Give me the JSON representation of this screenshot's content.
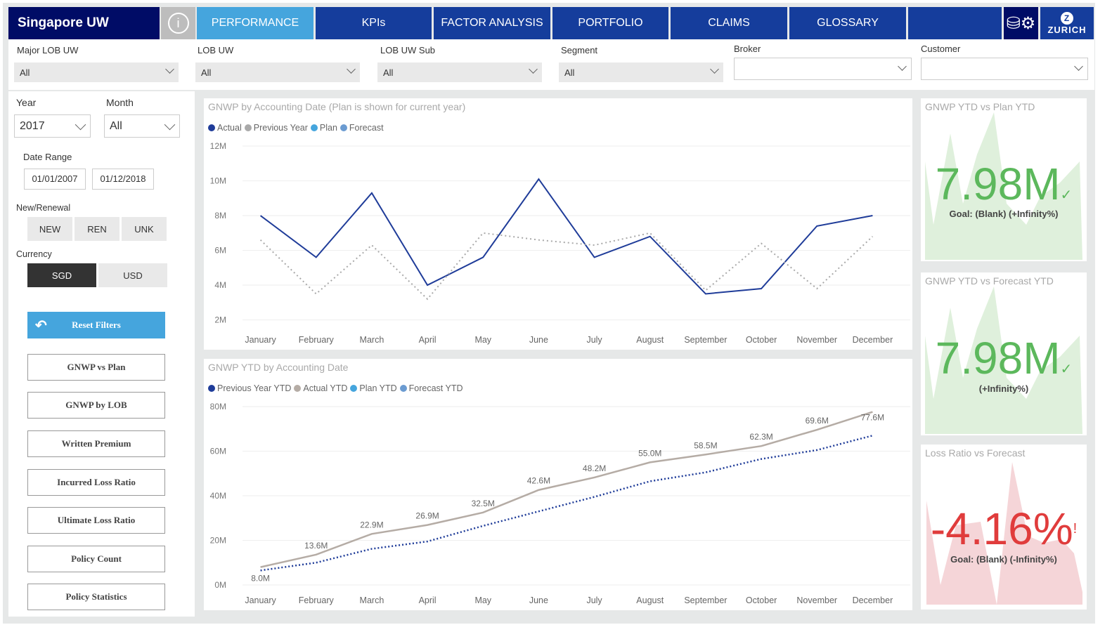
{
  "header": {
    "title": "Singapore UW",
    "tabs": [
      "PERFORMANCE",
      "KPIs",
      "FACTOR ANALYSIS",
      "PORTFOLIO",
      "CLAIMS",
      "GLOSSARY"
    ],
    "active_tab": "PERFORMANCE",
    "logo": "ZURICH"
  },
  "filters": {
    "major_lob": {
      "label": "Major LOB UW",
      "value": "All"
    },
    "lob": {
      "label": "LOB UW",
      "value": "All"
    },
    "lob_sub": {
      "label": "LOB UW Sub",
      "value": "All"
    },
    "segment": {
      "label": "Segment",
      "value": "All"
    },
    "broker": {
      "label": "Broker",
      "value": ""
    },
    "customer": {
      "label": "Customer",
      "value": ""
    }
  },
  "left": {
    "year_label": "Year",
    "year": "2017",
    "month_label": "Month",
    "month": "All",
    "date_range_label": "Date Range",
    "date_from": "01/01/2007",
    "date_to": "01/12/2018",
    "new_renewal_label": "New/Renewal",
    "new_renewal": [
      "NEW",
      "REN",
      "UNK"
    ],
    "currency_label": "Currency",
    "currencies": [
      "SGD",
      "USD"
    ],
    "selected_currency": "SGD",
    "reset": "Reset Filters",
    "nav": [
      "GNWP vs Plan",
      "GNWP by LOB",
      "Written Premium",
      "Incurred Loss Ratio",
      "Ultimate Loss Ratio",
      "Policy Count",
      "Policy Statistics"
    ]
  },
  "kpis": [
    {
      "title": "GNWP YTD vs Plan YTD",
      "value": "7.98M",
      "sub": "Goal: (Blank) (+Infinity%)",
      "status": "✓",
      "color": "#5cb85c"
    },
    {
      "title": "GNWP YTD vs Forecast YTD",
      "value": "7.98M",
      "sub": "(+Infinity%)",
      "status": "✓",
      "color": "#5cb85c"
    },
    {
      "title": "Loss Ratio vs Forecast",
      "value": "-4.16%",
      "sub": "Goal: (Blank) (-Infinity%)",
      "status": "!",
      "color": "#e03c3c"
    }
  ],
  "chart_data": [
    {
      "type": "line",
      "title": "GNWP by Accounting Date (Plan is shown for current year)",
      "legend": [
        "Actual",
        "Previous Year",
        "Plan",
        "Forecast"
      ],
      "legend_colors": [
        "#1f3c99",
        "#a9a9a9",
        "#45a5dd",
        "#6b9bd1"
      ],
      "categories": [
        "January",
        "February",
        "March",
        "April",
        "May",
        "June",
        "July",
        "August",
        "September",
        "October",
        "November",
        "December"
      ],
      "yticks": [
        "2M",
        "4M",
        "6M",
        "8M",
        "10M",
        "12M"
      ],
      "ylim": [
        1.7,
        12
      ],
      "series": [
        {
          "name": "Actual",
          "values": [
            8.0,
            5.6,
            9.3,
            4.0,
            5.6,
            10.1,
            5.6,
            6.8,
            3.5,
            3.8,
            7.4,
            8.0
          ]
        },
        {
          "name": "Previous Year",
          "values": [
            6.6,
            3.5,
            6.3,
            3.2,
            7.0,
            6.6,
            6.3,
            7.0,
            3.7,
            6.4,
            3.8,
            6.8
          ]
        }
      ]
    },
    {
      "type": "line",
      "title": "GNWP YTD by Accounting Date",
      "legend": [
        "Previous Year YTD",
        "Actual YTD",
        "Plan YTD",
        "Forecast YTD"
      ],
      "legend_colors": [
        "#1f3c99",
        "#b5aca5",
        "#45a5dd",
        "#6b9bd1"
      ],
      "categories": [
        "January",
        "February",
        "March",
        "April",
        "May",
        "June",
        "July",
        "August",
        "September",
        "October",
        "November",
        "December"
      ],
      "yticks": [
        "0M",
        "20M",
        "40M",
        "60M",
        "80M"
      ],
      "ylim": [
        0,
        80
      ],
      "series": [
        {
          "name": "Actual YTD",
          "values": [
            8.0,
            13.6,
            22.9,
            26.9,
            32.5,
            42.6,
            48.2,
            55.0,
            58.5,
            62.3,
            69.6,
            77.6
          ],
          "labels": [
            "8.0M",
            "13.6M",
            "22.9M",
            "26.9M",
            "32.5M",
            "42.6M",
            "48.2M",
            "55.0M",
            "58.5M",
            "62.3M",
            "69.6M",
            "77.6M"
          ]
        },
        {
          "name": "Previous Year YTD",
          "values": [
            6.5,
            10.0,
            16.2,
            19.5,
            26.5,
            33.0,
            39.5,
            46.5,
            50.5,
            56.5,
            60.5,
            67.0
          ]
        }
      ]
    }
  ]
}
